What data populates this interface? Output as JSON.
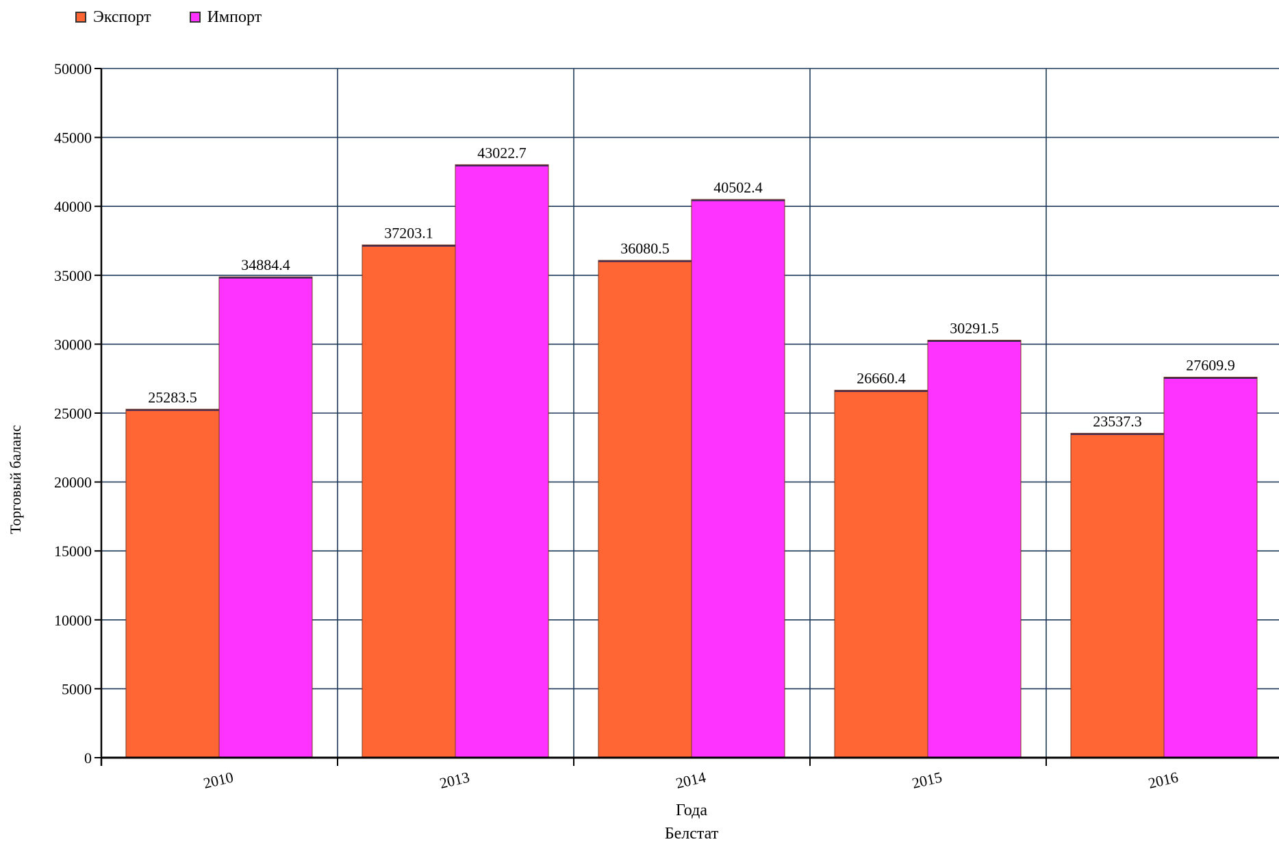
{
  "chart_data": {
    "type": "bar",
    "categories": [
      "2010",
      "2013",
      "2014",
      "2015",
      "2016"
    ],
    "series": [
      {
        "name": "Экспорт",
        "color": "#ff6633",
        "values": [
          25283.5,
          37203.1,
          36080.5,
          26660.4,
          23537.3
        ]
      },
      {
        "name": "Импорт",
        "color": "#ff33ff",
        "values": [
          34884.4,
          43022.7,
          40502.4,
          30291.5,
          27609.9
        ]
      }
    ],
    "data_labels": {
      "Экспорт": [
        "25283.5",
        "37203.1",
        "36080.5",
        "26660.4",
        "23537.3"
      ],
      "Импорт": [
        "34884.4",
        "43022.7",
        "40502.4",
        "30291.5",
        "27609.9"
      ]
    },
    "xlabel": "Года",
    "ylabel": "Торговый баланс",
    "caption": "Белстат",
    "ylim": [
      0,
      50000
    ],
    "yticks": [
      "0",
      "5000",
      "10000",
      "15000",
      "20000",
      "25000",
      "30000",
      "35000",
      "40000",
      "45000",
      "50000"
    ],
    "grid": true,
    "grid_color": "#1f3a5a",
    "legend_position": "top-left"
  }
}
